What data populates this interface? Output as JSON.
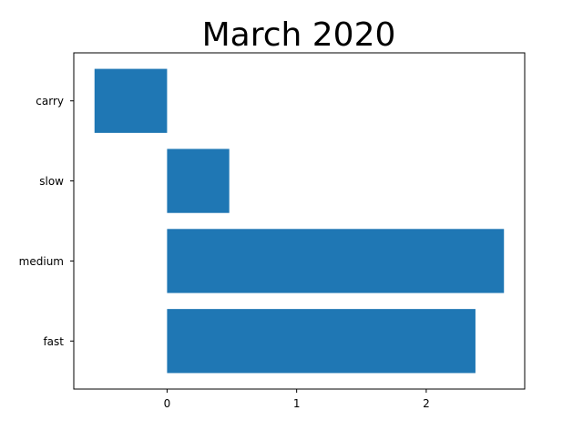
{
  "chart_data": {
    "type": "bar",
    "orientation": "horizontal",
    "title": "March 2020",
    "xlabel": "",
    "ylabel": "",
    "categories": [
      "fast",
      "medium",
      "slow",
      "carry"
    ],
    "values": [
      2.38,
      2.6,
      0.48,
      -0.56
    ],
    "xlim": [
      -0.72,
      2.76
    ],
    "xticks": [
      0,
      1,
      2
    ],
    "grid": false,
    "legend": "none",
    "bar_color": "#1f77b4"
  }
}
